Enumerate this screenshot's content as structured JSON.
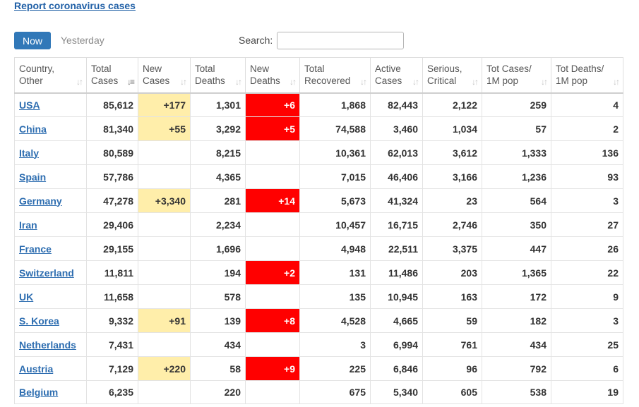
{
  "header": {
    "report_link": "Report coronavirus cases"
  },
  "toolbar": {
    "now_label": "Now",
    "yesterday_label": "Yesterday",
    "search_label": "Search:",
    "search_value": ""
  },
  "table": {
    "columns": [
      {
        "line1": "Country,",
        "line2": "Other"
      },
      {
        "line1": "Total",
        "line2": "Cases"
      },
      {
        "line1": "New",
        "line2": "Cases"
      },
      {
        "line1": "Total",
        "line2": "Deaths"
      },
      {
        "line1": "New",
        "line2": "Deaths"
      },
      {
        "line1": "Total",
        "line2": "Recovered"
      },
      {
        "line1": "Active",
        "line2": "Cases"
      },
      {
        "line1": "Serious,",
        "line2": "Critical"
      },
      {
        "line1": "Tot Cases/",
        "line2": "1M pop"
      },
      {
        "line1": "Tot Deaths/",
        "line2": "1M pop"
      }
    ],
    "rows": [
      {
        "country": "USA",
        "total_cases": "85,612",
        "new_cases": "+177",
        "total_deaths": "1,301",
        "new_deaths": "+6",
        "total_recovered": "1,868",
        "active_cases": "82,443",
        "serious": "2,122",
        "cases_per_1m": "259",
        "deaths_per_1m": "4"
      },
      {
        "country": "China",
        "total_cases": "81,340",
        "new_cases": "+55",
        "total_deaths": "3,292",
        "new_deaths": "+5",
        "total_recovered": "74,588",
        "active_cases": "3,460",
        "serious": "1,034",
        "cases_per_1m": "57",
        "deaths_per_1m": "2"
      },
      {
        "country": "Italy",
        "total_cases": "80,589",
        "new_cases": "",
        "total_deaths": "8,215",
        "new_deaths": "",
        "total_recovered": "10,361",
        "active_cases": "62,013",
        "serious": "3,612",
        "cases_per_1m": "1,333",
        "deaths_per_1m": "136"
      },
      {
        "country": "Spain",
        "total_cases": "57,786",
        "new_cases": "",
        "total_deaths": "4,365",
        "new_deaths": "",
        "total_recovered": "7,015",
        "active_cases": "46,406",
        "serious": "3,166",
        "cases_per_1m": "1,236",
        "deaths_per_1m": "93"
      },
      {
        "country": "Germany",
        "total_cases": "47,278",
        "new_cases": "+3,340",
        "total_deaths": "281",
        "new_deaths": "+14",
        "total_recovered": "5,673",
        "active_cases": "41,324",
        "serious": "23",
        "cases_per_1m": "564",
        "deaths_per_1m": "3"
      },
      {
        "country": "Iran",
        "total_cases": "29,406",
        "new_cases": "",
        "total_deaths": "2,234",
        "new_deaths": "",
        "total_recovered": "10,457",
        "active_cases": "16,715",
        "serious": "2,746",
        "cases_per_1m": "350",
        "deaths_per_1m": "27"
      },
      {
        "country": "France",
        "total_cases": "29,155",
        "new_cases": "",
        "total_deaths": "1,696",
        "new_deaths": "",
        "total_recovered": "4,948",
        "active_cases": "22,511",
        "serious": "3,375",
        "cases_per_1m": "447",
        "deaths_per_1m": "26"
      },
      {
        "country": "Switzerland",
        "total_cases": "11,811",
        "new_cases": "",
        "total_deaths": "194",
        "new_deaths": "+2",
        "total_recovered": "131",
        "active_cases": "11,486",
        "serious": "203",
        "cases_per_1m": "1,365",
        "deaths_per_1m": "22"
      },
      {
        "country": "UK",
        "total_cases": "11,658",
        "new_cases": "",
        "total_deaths": "578",
        "new_deaths": "",
        "total_recovered": "135",
        "active_cases": "10,945",
        "serious": "163",
        "cases_per_1m": "172",
        "deaths_per_1m": "9"
      },
      {
        "country": "S. Korea",
        "total_cases": "9,332",
        "new_cases": "+91",
        "total_deaths": "139",
        "new_deaths": "+8",
        "total_recovered": "4,528",
        "active_cases": "4,665",
        "serious": "59",
        "cases_per_1m": "182",
        "deaths_per_1m": "3"
      },
      {
        "country": "Netherlands",
        "total_cases": "7,431",
        "new_cases": "",
        "total_deaths": "434",
        "new_deaths": "",
        "total_recovered": "3",
        "active_cases": "6,994",
        "serious": "761",
        "cases_per_1m": "434",
        "deaths_per_1m": "25"
      },
      {
        "country": "Austria",
        "total_cases": "7,129",
        "new_cases": "+220",
        "total_deaths": "58",
        "new_deaths": "+9",
        "total_recovered": "225",
        "active_cases": "6,846",
        "serious": "96",
        "cases_per_1m": "792",
        "deaths_per_1m": "6"
      },
      {
        "country": "Belgium",
        "total_cases": "6,235",
        "new_cases": "",
        "total_deaths": "220",
        "new_deaths": "",
        "total_recovered": "675",
        "active_cases": "5,340",
        "serious": "605",
        "cases_per_1m": "538",
        "deaths_per_1m": "19"
      }
    ]
  },
  "colors": {
    "accent_button": "#3178b8",
    "link": "#2d6db0",
    "new_cases_highlight": "#ffeeaa",
    "new_deaths_highlight": "#ff0000"
  },
  "icons": {
    "sort": "sort-arrows-icon",
    "sort_active": "sort-descending-icon"
  }
}
